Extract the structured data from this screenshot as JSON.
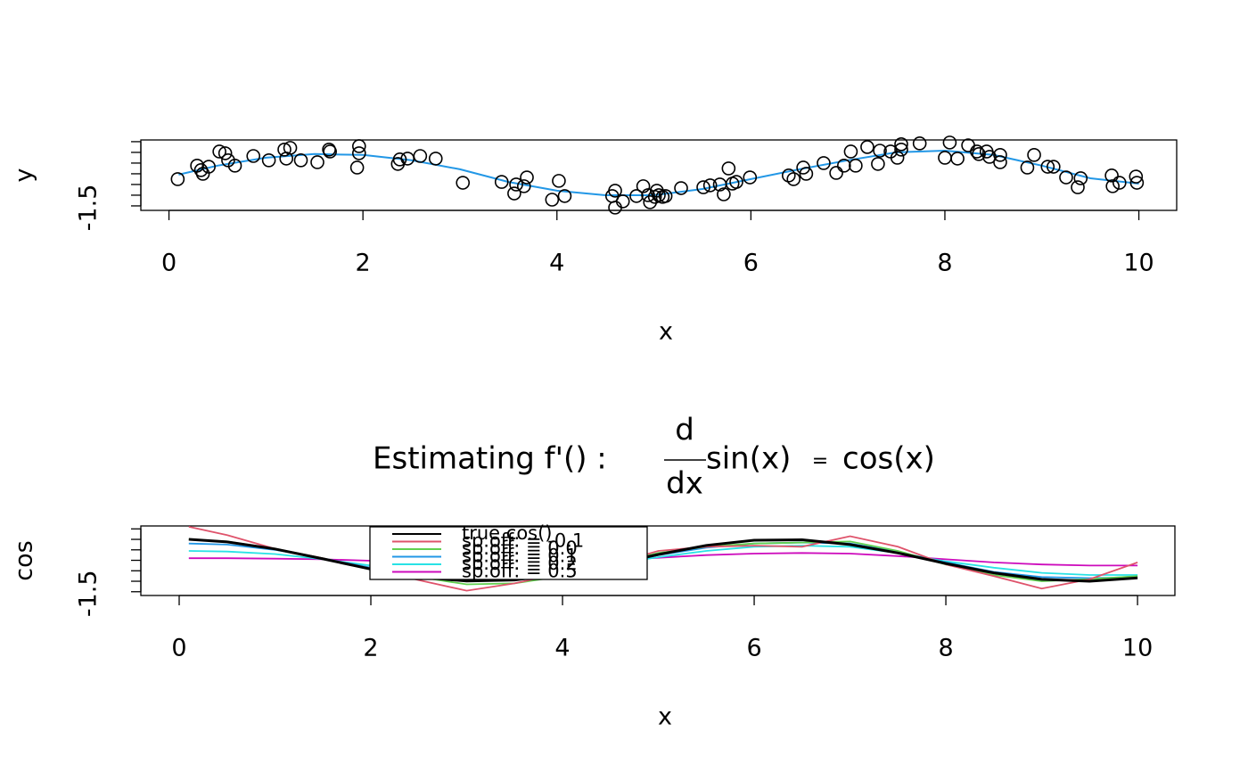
{
  "chart_data": [
    {
      "type": "scatter",
      "xlabel": "x",
      "ylabel": "y",
      "point_color": "#000000",
      "xlim": [
        -0.29,
        10.39
      ],
      "ylim": [
        -1.71,
        1.58
      ],
      "xticks": [
        0,
        2,
        4,
        6,
        8,
        10
      ],
      "yticks": [
        -1.5,
        {
          "value": -1,
          "label": null
        },
        {
          "value": -0.5,
          "label": null
        },
        {
          "value": 0,
          "label": null
        },
        {
          "value": 0.5,
          "label": null
        },
        {
          "value": 1,
          "label": null
        },
        {
          "value": 1.5,
          "label": null
        }
      ],
      "x": [
        0.09,
        0.29,
        0.33,
        0.35,
        0.41,
        0.52,
        0.58,
        0.61,
        0.68,
        0.87,
        1.03,
        1.19,
        1.21,
        1.25,
        1.36,
        1.53,
        1.65,
        1.66,
        1.94,
        1.96,
        1.96,
        2.36,
        2.38,
        2.46,
        2.59,
        2.75,
        3.03,
        3.43,
        3.56,
        3.58,
        3.66,
        3.69,
        3.95,
        4.02,
        4.08,
        4.57,
        4.6,
        4.6,
        4.68,
        4.82,
        4.89,
        4.94,
        4.96,
        5.01,
        5.03,
        5.05,
        5.09,
        5.12,
        5.28,
        5.51,
        5.58,
        5.68,
        5.72,
        5.77,
        5.81,
        5.85,
        5.99,
        6.39,
        6.44,
        6.54,
        6.57,
        6.75,
        6.88,
        6.96,
        7.03,
        7.08,
        7.2,
        7.31,
        7.33,
        7.44,
        7.51,
        7.55,
        7.55,
        7.74,
        8.0,
        8.05,
        8.13,
        8.24,
        8.33,
        8.35,
        8.43,
        8.46,
        8.57,
        8.57,
        8.85,
        8.92,
        9.06,
        9.12,
        9.25,
        9.37,
        9.4,
        9.72,
        9.73,
        9.8,
        9.97,
        9.98
      ],
      "values": [
        -0.25,
        0.38,
        0.17,
        0.0,
        0.33,
        1.04,
        0.96,
        0.63,
        0.38,
        0.83,
        0.63,
        1.13,
        0.71,
        1.21,
        0.63,
        0.54,
        1.13,
        1.04,
        0.29,
        1.29,
        0.96,
        0.46,
        0.67,
        0.71,
        0.83,
        0.71,
        -0.42,
        -0.38,
        -0.92,
        -0.5,
        -0.58,
        -0.17,
        -1.21,
        -0.33,
        -1.04,
        -1.04,
        -0.79,
        -1.58,
        -1.29,
        -1.04,
        -0.58,
        -1.0,
        -1.33,
        -1.08,
        -0.79,
        -1.0,
        -1.08,
        -1.04,
        -0.67,
        -0.63,
        -0.54,
        -0.5,
        -0.96,
        0.25,
        -0.46,
        -0.38,
        -0.17,
        -0.08,
        -0.25,
        0.29,
        0.0,
        0.5,
        0.04,
        0.38,
        1.04,
        0.38,
        1.25,
        0.46,
        1.08,
        1.04,
        0.75,
        1.13,
        1.38,
        1.42,
        0.75,
        1.46,
        0.71,
        1.33,
        1.04,
        0.92,
        1.04,
        0.79,
        0.54,
        0.88,
        0.29,
        0.88,
        0.33,
        0.33,
        -0.17,
        -0.63,
        -0.21,
        -0.08,
        -0.58,
        -0.42,
        -0.13,
        -0.42
      ],
      "curve": {
        "color": "#2297E6",
        "x": [
          0.1,
          0.5,
          1,
          1.5,
          2,
          2.5,
          3,
          3.5,
          4,
          4.5,
          5,
          5.5,
          6,
          6.5,
          7,
          7.5,
          8,
          8.5,
          9,
          9.5,
          10
        ],
        "values": [
          -0.04,
          0.38,
          0.75,
          0.92,
          0.88,
          0.63,
          0.21,
          -0.38,
          -0.79,
          -1.0,
          -1.0,
          -0.71,
          -0.25,
          0.21,
          0.63,
          1.0,
          1.08,
          0.88,
          0.38,
          -0.21,
          -0.46
        ]
      }
    },
    {
      "type": "line",
      "xlabel": "x",
      "ylabel": "cos",
      "title": {
        "lead": "Estimating f'() :",
        "num": "d",
        "den": "dx",
        "left": "sin(x)",
        "eq": "=",
        "right": "cos(x)"
      },
      "xlim": [
        -0.4,
        10.39
      ],
      "ylim": [
        -1.68,
        1.64
      ],
      "xticks": [
        0,
        2,
        4,
        6,
        8,
        10
      ],
      "yticks": [
        -1.5,
        {
          "value": -1,
          "label": null
        },
        {
          "value": -0.5,
          "label": null
        },
        {
          "value": 0,
          "label": null
        },
        {
          "value": 0.5,
          "label": null
        },
        {
          "value": 1,
          "label": null
        },
        {
          "value": 1.5,
          "label": null
        }
      ],
      "legend": "top-left",
      "x": [
        0.1,
        0.5,
        1,
        1.5,
        2,
        2.5,
        3,
        3.5,
        4,
        4.5,
        5,
        5.5,
        6,
        6.5,
        7,
        7.5,
        8,
        8.5,
        9,
        9.5,
        10
      ],
      "series": [
        {
          "name": "true cos()",
          "color": "#000000",
          "values": [
            1.0,
            0.88,
            0.54,
            0.07,
            -0.42,
            -0.8,
            -0.99,
            -0.94,
            -0.65,
            -0.21,
            0.28,
            0.71,
            0.96,
            0.98,
            0.75,
            0.35,
            -0.15,
            -0.6,
            -0.91,
            -1.0,
            -0.84
          ]
        },
        {
          "name": "sp.off: = -0.1",
          "color": "#DF536B",
          "values": [
            1.6,
            1.2,
            0.55,
            0.1,
            -0.4,
            -0.95,
            -1.45,
            -1.1,
            -0.6,
            -0.2,
            0.45,
            0.65,
            0.7,
            0.65,
            1.15,
            0.65,
            -0.2,
            -0.75,
            -1.35,
            -0.9,
            -0.1
          ]
        },
        {
          "name": "sp.off: = 0.0",
          "color": "#61D04F",
          "values": [
            1.0,
            0.9,
            0.55,
            0.1,
            -0.4,
            -0.8,
            -1.15,
            -1.1,
            -0.75,
            -0.2,
            0.35,
            0.65,
            0.8,
            0.85,
            0.9,
            0.45,
            -0.2,
            -0.7,
            -1.0,
            -0.9,
            -0.75
          ]
        },
        {
          "name": "sp.off: = 0.1",
          "color": "#2297E6",
          "values": [
            0.8,
            0.75,
            0.5,
            0.1,
            -0.35,
            -0.75,
            -0.95,
            -0.95,
            -0.7,
            -0.25,
            0.25,
            0.6,
            0.8,
            0.85,
            0.8,
            0.4,
            -0.1,
            -0.55,
            -0.8,
            -0.85,
            -0.8
          ]
        },
        {
          "name": "sp.off: = 0.2",
          "color": "#28E2E5",
          "values": [
            0.45,
            0.42,
            0.3,
            0.05,
            -0.25,
            -0.55,
            -0.75,
            -0.75,
            -0.55,
            -0.2,
            0.15,
            0.45,
            0.65,
            0.7,
            0.65,
            0.35,
            -0.05,
            -0.35,
            -0.6,
            -0.7,
            -0.7
          ]
        },
        {
          "name": "sp.off: = 0.5",
          "color": "#CD0BBC",
          "values": [
            0.1,
            0.1,
            0.08,
            0.05,
            -0.02,
            -0.1,
            -0.15,
            -0.15,
            -0.1,
            0.0,
            0.12,
            0.25,
            0.32,
            0.35,
            0.32,
            0.2,
            0.05,
            -0.1,
            -0.2,
            -0.25,
            -0.25
          ]
        }
      ]
    }
  ]
}
